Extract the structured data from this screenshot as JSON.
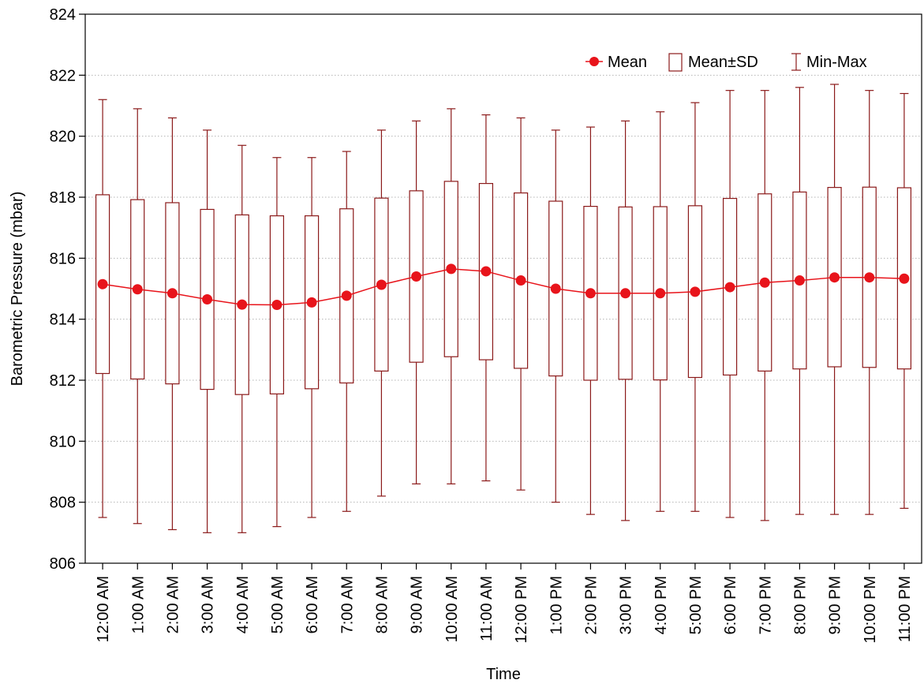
{
  "chart_data": {
    "type": "box",
    "title": "",
    "xlabel": "Time",
    "ylabel": "Barometric Pressure (mbar)",
    "ylim": [
      806,
      824
    ],
    "yticks": [
      806,
      808,
      810,
      812,
      814,
      816,
      818,
      820,
      822,
      824
    ],
    "grid": "horizontal dotted",
    "legend_position": "top-right",
    "legend": [
      {
        "label": "Mean",
        "symbol": "line-dot-icon"
      },
      {
        "label": "Mean±SD",
        "symbol": "box-icon"
      },
      {
        "label": "Min-Max",
        "symbol": "whisker-icon"
      }
    ],
    "colors": {
      "mean": "#e8141b",
      "box": "#8b1a1a"
    },
    "categories": [
      "12:00 AM",
      "1:00 AM",
      "2:00 AM",
      "3:00 AM",
      "4:00 AM",
      "5:00 AM",
      "6:00 AM",
      "7:00 AM",
      "8:00 AM",
      "9:00 AM",
      "10:00 AM",
      "11:00 AM",
      "12:00 PM",
      "1:00 PM",
      "2:00 PM",
      "3:00 PM",
      "4:00 PM",
      "5:00 PM",
      "6:00 PM",
      "7:00 PM",
      "8:00 PM",
      "9:00 PM",
      "10:00 PM",
      "11:00 PM"
    ],
    "series": {
      "mean": [
        815.15,
        814.98,
        814.85,
        814.65,
        814.48,
        814.47,
        814.55,
        814.77,
        815.13,
        815.4,
        815.65,
        815.57,
        815.27,
        815.0,
        814.85,
        814.85,
        814.85,
        814.9,
        815.05,
        815.2,
        815.27,
        815.37,
        815.37,
        815.33
      ],
      "sd_low": [
        812.22,
        812.04,
        811.88,
        811.7,
        811.53,
        811.55,
        811.72,
        811.91,
        812.3,
        812.59,
        812.77,
        812.67,
        812.39,
        812.14,
        812.0,
        812.03,
        812.01,
        812.09,
        812.17,
        812.3,
        812.37,
        812.44,
        812.42,
        812.37
      ],
      "sd_high": [
        818.08,
        817.92,
        817.82,
        817.6,
        817.42,
        817.39,
        817.39,
        817.62,
        817.97,
        818.21,
        818.52,
        818.45,
        818.14,
        817.87,
        817.7,
        817.68,
        817.69,
        817.72,
        817.96,
        818.11,
        818.17,
        818.32,
        818.33,
        818.31
      ],
      "min": [
        807.5,
        807.3,
        807.1,
        807.0,
        807.0,
        807.2,
        807.5,
        807.7,
        808.2,
        808.6,
        808.6,
        808.7,
        808.4,
        808.0,
        807.6,
        807.4,
        807.7,
        807.7,
        807.5,
        807.4,
        807.6,
        807.6,
        807.6,
        807.8
      ],
      "max": [
        821.2,
        820.9,
        820.6,
        820.2,
        819.7,
        819.3,
        819.3,
        819.5,
        820.2,
        820.5,
        820.9,
        820.7,
        820.6,
        820.2,
        820.3,
        820.5,
        820.8,
        821.1,
        821.5,
        821.5,
        821.6,
        821.7,
        821.5,
        821.4
      ]
    }
  }
}
